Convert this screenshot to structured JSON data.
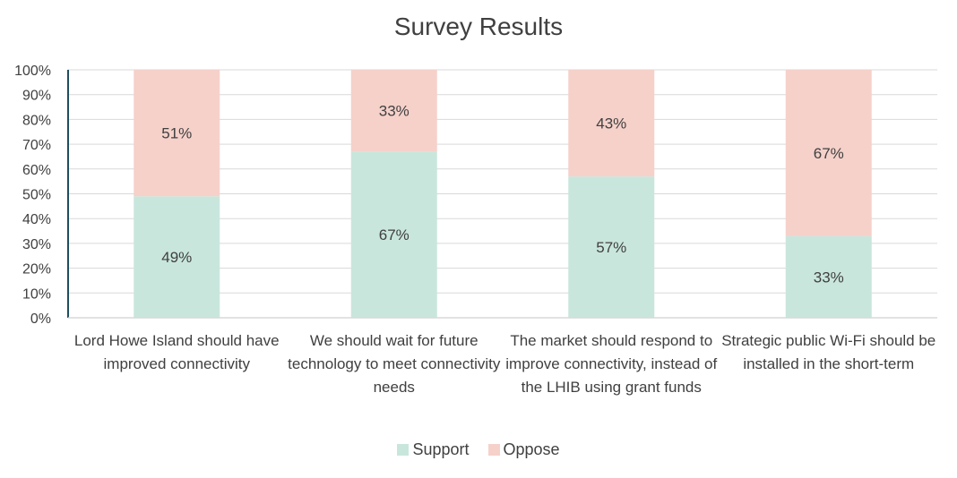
{
  "chart_data": {
    "type": "bar",
    "stacked": true,
    "title": "Survey Results",
    "categories": [
      "Lord Howe Island should have improved connectivity",
      "We should wait for future technology to meet connectivity needs",
      "The market should respond to improve connectivity, instead of the LHIB using grant funds",
      "Strategic public Wi-Fi should be installed in the short-term"
    ],
    "series": [
      {
        "name": "Support",
        "color": "#c9e6dd",
        "values": [
          49,
          67,
          57,
          33
        ],
        "labels": [
          "49%",
          "67%",
          "57%",
          "33%"
        ]
      },
      {
        "name": "Oppose",
        "color": "#f5d1ca",
        "values": [
          51,
          33,
          43,
          67
        ],
        "labels": [
          "51%",
          "33%",
          "43%",
          "67%"
        ]
      }
    ],
    "yticks": [
      "0%",
      "10%",
      "20%",
      "30%",
      "40%",
      "50%",
      "60%",
      "70%",
      "80%",
      "90%",
      "100%"
    ],
    "ylim": [
      0,
      100
    ],
    "grid": true,
    "legend_position": "bottom"
  }
}
